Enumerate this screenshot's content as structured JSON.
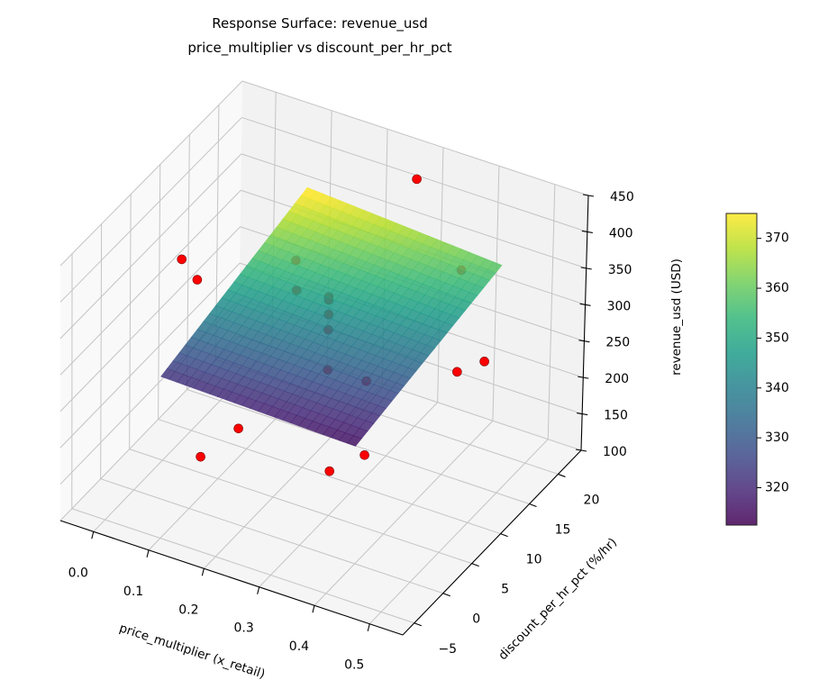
{
  "chart_data": {
    "type": "scatter",
    "subtype": "3d-surface-with-scatter",
    "title": "Response Surface: revenue_usd",
    "subtitle": "price_multiplier vs discount_per_hr_pct",
    "xlabel": "price_multiplier (x_retail)",
    "ylabel": "discount_per_hr_pct (%/hr)",
    "zlabel": "revenue_usd (USD)",
    "xlim": [
      -0.06,
      0.56
    ],
    "ylim": [
      -7,
      24
    ],
    "zlim": [
      100,
      450
    ],
    "xticks": [
      "0.0",
      "0.1",
      "0.2",
      "0.3",
      "0.4",
      "0.5"
    ],
    "yticks": [
      "−5",
      "0",
      "5",
      "10",
      "15",
      "20"
    ],
    "zticks": [
      "100",
      "150",
      "200",
      "250",
      "300",
      "350",
      "400",
      "450"
    ],
    "grid": true,
    "surface": {
      "colormap": "viridis",
      "x_range": [
        0.1,
        0.45
      ],
      "y_range": [
        -5,
        20
      ],
      "z_corners": {
        "xmin_ymin": 322,
        "xmax_ymin": 315,
        "xmin_ymax": 377,
        "xmax_ymax": 359
      }
    },
    "points": [
      {
        "x": 0.295,
        "y": 20,
        "z": 438
      },
      {
        "x": 0.084,
        "y": 0,
        "z": 438
      },
      {
        "x": 0.06,
        "y": 5,
        "z": 363
      },
      {
        "x": 0.133,
        "y": 15,
        "z": 326
      },
      {
        "x": 0.166,
        "y": 12,
        "z": 318
      },
      {
        "x": 0.27,
        "y": 7.5,
        "z": 372
      },
      {
        "x": 0.27,
        "y": 7.5,
        "z": 368
      },
      {
        "x": 0.27,
        "y": 7.5,
        "z": 348
      },
      {
        "x": 0.27,
        "y": 7.5,
        "z": 327
      },
      {
        "x": 0.27,
        "y": 7.5,
        "z": 272
      },
      {
        "x": 0.365,
        "y": 5,
        "z": 301
      },
      {
        "x": 0.378,
        "y": 20,
        "z": 334
      },
      {
        "x": 0.476,
        "y": 10,
        "z": 301
      },
      {
        "x": 0.504,
        "y": 12,
        "z": 306
      },
      {
        "x": 0.188,
        "y": 0,
        "z": 232
      },
      {
        "x": 0.172,
        "y": -5,
        "z": 230
      },
      {
        "x": 0.404,
        "y": -5,
        "z": 269
      },
      {
        "x": 0.415,
        "y": 0,
        "z": 253
      }
    ],
    "point_color": "#ff0000",
    "colorbar": {
      "range": [
        312.5,
        375
      ],
      "ticks": [
        "320",
        "330",
        "340",
        "350",
        "360",
        "370"
      ]
    }
  }
}
